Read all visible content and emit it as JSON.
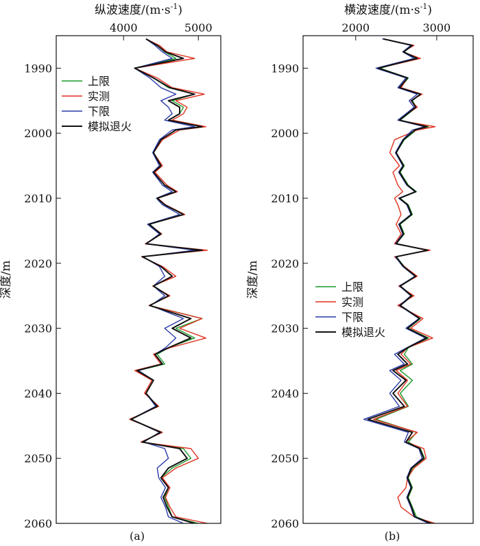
{
  "chart_data": [
    {
      "type": "line",
      "orientation": "vertical-depth",
      "panel_label": "(a)",
      "title": "纵波速度/(m·s-1)",
      "title_parts": {
        "base": "纵波速度/(m·s",
        "sup": "-1",
        "close": ")"
      },
      "xlabel": "纵波速度/(m·s-1)",
      "ylabel": "深度/m",
      "xlim": [
        3100,
        5300
      ],
      "ylim": [
        1985,
        2060
      ],
      "x_ticks": [
        4000,
        5000
      ],
      "y_ticks": [
        1990,
        2000,
        2010,
        2020,
        2030,
        2040,
        2050,
        2060
      ],
      "legend_position": "upper-left",
      "grid": false,
      "depth": [
        1985.5,
        1986.5,
        1987.5,
        1988.5,
        1990,
        1991.5,
        1993,
        1994,
        1995,
        1996,
        1997,
        1998,
        1999,
        1999.5,
        2001,
        2003,
        2005,
        2006,
        2008,
        2009,
        2010,
        2011,
        2012.5,
        2014,
        2015.5,
        2017,
        2018,
        2019,
        2020.5,
        2022,
        2023.5,
        2025,
        2026.5,
        2028.5,
        2030,
        2031.5,
        2033,
        2034,
        2035.5,
        2036.5,
        2038,
        2040,
        2042,
        2044,
        2046,
        2047.5,
        2048.5,
        2050,
        2051.5,
        2053,
        2054.5,
        2056,
        2057.5,
        2059,
        2060
      ],
      "series": [
        {
          "name": "上限",
          "color": "#1a9a2a",
          "values": [
            4300,
            4450,
            4550,
            4700,
            4150,
            4400,
            4600,
            4950,
            4650,
            4800,
            4750,
            4600,
            5050,
            4700,
            4500,
            4400,
            4500,
            4400,
            4550,
            4700,
            4450,
            4550,
            4800,
            4350,
            4500,
            4300,
            5000,
            4250,
            4500,
            4650,
            4400,
            4600,
            4350,
            5050,
            4700,
            4950,
            4600,
            4450,
            4550,
            4200,
            4400,
            4300,
            4450,
            4100,
            4500,
            4250,
            4800,
            4900,
            4650,
            4500,
            4600,
            4550,
            4600,
            4650,
            5000
          ]
        },
        {
          "name": "实测",
          "color": "#e0301e",
          "values": [
            4300,
            4480,
            4580,
            4950,
            4150,
            4450,
            4650,
            5080,
            4700,
            4850,
            4800,
            4650,
            5100,
            4750,
            4520,
            4400,
            4520,
            4420,
            4580,
            4720,
            4460,
            4560,
            4820,
            4340,
            4510,
            4290,
            5120,
            4240,
            4520,
            4700,
            4390,
            4620,
            4340,
            5050,
            4750,
            5100,
            4620,
            4400,
            4500,
            4150,
            4380,
            4280,
            4470,
            4080,
            4520,
            4230,
            4900,
            5000,
            4700,
            4520,
            4620,
            4560,
            4620,
            4700,
            5120
          ]
        },
        {
          "name": "下限",
          "color": "#2a3aa8",
          "values": [
            4300,
            4420,
            4520,
            4650,
            4150,
            4350,
            4500,
            4700,
            4500,
            4600,
            4650,
            4550,
            4950,
            4650,
            4480,
            4390,
            4480,
            4390,
            4520,
            4650,
            4440,
            4520,
            4750,
            4320,
            4480,
            4300,
            4950,
            4260,
            4480,
            4550,
            4400,
            4550,
            4360,
            4800,
            4550,
            4700,
            4560,
            4420,
            4520,
            4200,
            4400,
            4300,
            4430,
            4100,
            4480,
            4270,
            4550,
            4600,
            4450,
            4470,
            4560,
            4500,
            4560,
            4600,
            4800
          ]
        },
        {
          "name": "模拟退火",
          "color": "#111111",
          "values": [
            4300,
            4450,
            4560,
            4800,
            4150,
            4400,
            4620,
            4950,
            4600,
            4750,
            4750,
            4600,
            5050,
            4700,
            4500,
            4400,
            4500,
            4400,
            4550,
            4700,
            4450,
            4550,
            4800,
            4340,
            4500,
            4300,
            5050,
            4250,
            4500,
            4650,
            4400,
            4600,
            4350,
            4900,
            4650,
            4900,
            4600,
            4420,
            4520,
            4180,
            4400,
            4300,
            4450,
            4100,
            4500,
            4250,
            4750,
            4850,
            4600,
            4500,
            4600,
            4530,
            4580,
            4650,
            4950
          ]
        }
      ]
    },
    {
      "type": "line",
      "orientation": "vertical-depth",
      "panel_label": "(b)",
      "title": "横波速度/(m·s-1)",
      "title_parts": {
        "base": "横波速度/(m·s",
        "sup": "-1",
        "close": ")"
      },
      "xlabel": "横波速度/(m·s-1)",
      "ylabel": "深度/m",
      "xlim": [
        1350,
        3450
      ],
      "ylim": [
        1985,
        2060
      ],
      "x_ticks": [
        2000,
        3000
      ],
      "y_ticks": [
        1990,
        2000,
        2010,
        2020,
        2030,
        2040,
        2050,
        2060
      ],
      "legend_position": "middle-left",
      "grid": false,
      "depth": [
        1985.5,
        1986.5,
        1987.5,
        1988.5,
        1990,
        1991.5,
        1993,
        1994,
        1995,
        1996,
        1997,
        1998,
        1999,
        1999.5,
        2001,
        2003,
        2005,
        2006,
        2008,
        2009,
        2010,
        2011,
        2012.5,
        2014,
        2015.5,
        2017,
        2018,
        2019,
        2020.5,
        2022,
        2023.5,
        2025,
        2026.5,
        2028.5,
        2030,
        2031.5,
        2033,
        2034,
        2035.5,
        2036.5,
        2038,
        2040,
        2042,
        2044,
        2046,
        2047.5,
        2048.5,
        2050,
        2051.5,
        2053,
        2054.5,
        2056,
        2057.5,
        2059,
        2060
      ],
      "series": [
        {
          "name": "上限",
          "color": "#1a9a2a",
          "values": [
            2350,
            2700,
            2600,
            2750,
            2300,
            2650,
            2550,
            2800,
            2700,
            2750,
            2650,
            2550,
            2900,
            2750,
            2600,
            2500,
            2600,
            2550,
            2650,
            2750,
            2550,
            2650,
            2700,
            2550,
            2600,
            2500,
            2900,
            2500,
            2600,
            2750,
            2550,
            2700,
            2550,
            2800,
            2650,
            2900,
            2650,
            2600,
            2700,
            2550,
            2700,
            2550,
            2650,
            2250,
            2750,
            2650,
            2800,
            2850,
            2700,
            2650,
            2700,
            2650,
            2700,
            2750,
            2950
          ]
        },
        {
          "name": "实测",
          "color": "#e0301e",
          "values": [
            2330,
            2720,
            2580,
            2800,
            2280,
            2640,
            2560,
            2820,
            2680,
            2760,
            2640,
            2520,
            2980,
            2760,
            2480,
            2420,
            2540,
            2460,
            2520,
            2580,
            2480,
            2520,
            2560,
            2500,
            2560,
            2480,
            2920,
            2480,
            2600,
            2760,
            2530,
            2720,
            2520,
            2830,
            2680,
            2950,
            2640,
            2560,
            2680,
            2500,
            2640,
            2520,
            2640,
            2220,
            2760,
            2620,
            2840,
            2870,
            2720,
            2640,
            2620,
            2520,
            2560,
            2720,
            2980
          ]
        },
        {
          "name": "下限",
          "color": "#2a3aa8",
          "values": [
            2330,
            2680,
            2580,
            2720,
            2250,
            2620,
            2520,
            2760,
            2660,
            2720,
            2620,
            2520,
            2850,
            2700,
            2580,
            2490,
            2580,
            2530,
            2630,
            2730,
            2530,
            2630,
            2680,
            2530,
            2580,
            2490,
            2880,
            2490,
            2580,
            2730,
            2540,
            2680,
            2540,
            2780,
            2620,
            2860,
            2630,
            2480,
            2600,
            2420,
            2560,
            2420,
            2540,
            2100,
            2650,
            2600,
            2780,
            2820,
            2680,
            2630,
            2680,
            2630,
            2680,
            2720,
            2900
          ]
        },
        {
          "name": "模拟退火",
          "color": "#111111",
          "values": [
            2340,
            2700,
            2590,
            2760,
            2280,
            2640,
            2540,
            2800,
            2690,
            2740,
            2640,
            2540,
            2880,
            2730,
            2590,
            2500,
            2590,
            2540,
            2640,
            2740,
            2540,
            2640,
            2690,
            2540,
            2590,
            2500,
            2890,
            2500,
            2590,
            2740,
            2550,
            2690,
            2550,
            2790,
            2640,
            2880,
            2640,
            2520,
            2640,
            2460,
            2620,
            2460,
            2600,
            2150,
            2700,
            2620,
            2790,
            2840,
            2690,
            2640,
            2690,
            2640,
            2690,
            2730,
            2930
          ]
        }
      ]
    }
  ]
}
